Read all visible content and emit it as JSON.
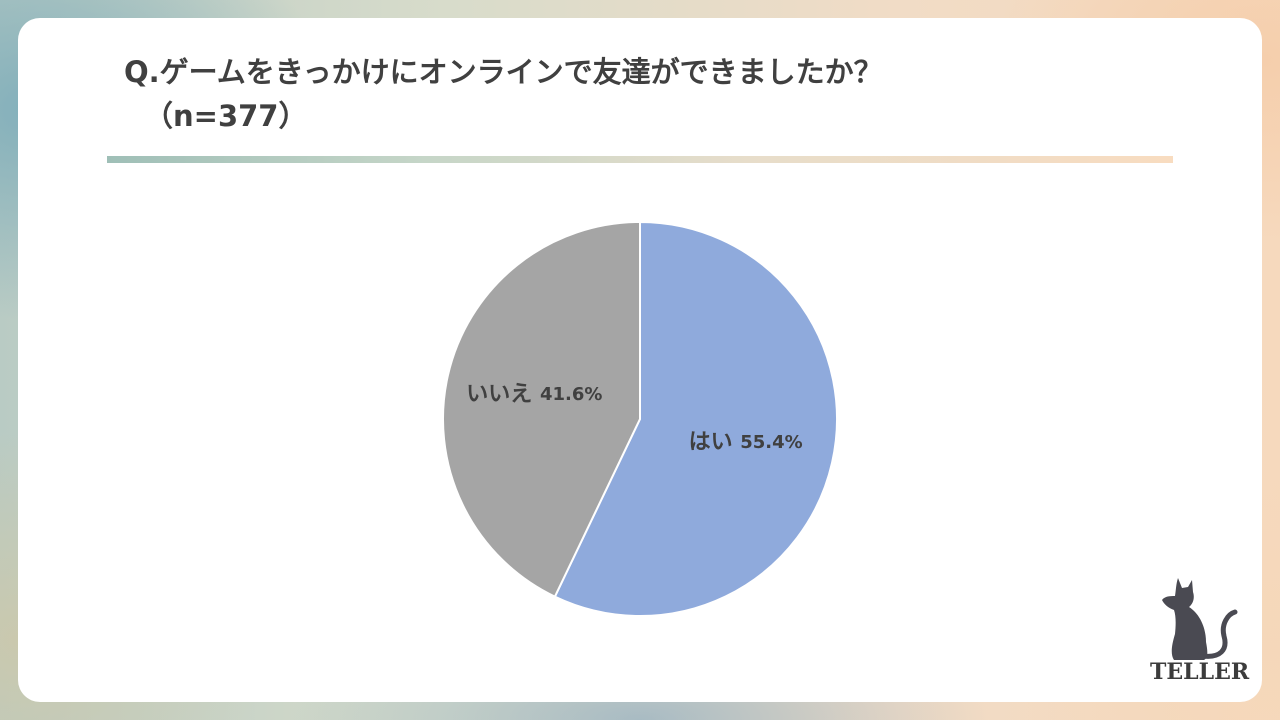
{
  "page": {
    "title": "Q.ゲームをきっかけにオンラインで友達ができましたか？",
    "subtitle": "（n=377）",
    "brand": "TELLER",
    "logo_icon": "cat-silhouette-icon"
  },
  "chart_data": {
    "type": "pie",
    "start_angle_deg": 0,
    "direction": "clockwise",
    "slices": [
      {
        "label": "はい",
        "value": 55.4,
        "value_text": "55.4%",
        "color": "#8faadc"
      },
      {
        "label": "いいえ",
        "value": 41.6,
        "value_text": "41.6%",
        "color": "#a5a5a5"
      }
    ]
  }
}
